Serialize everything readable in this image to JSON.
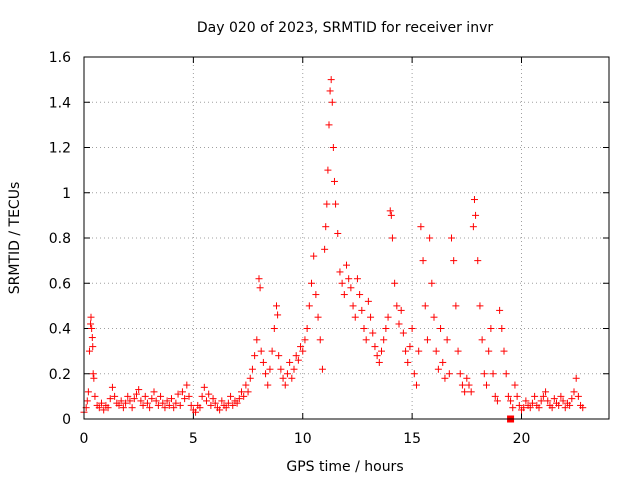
{
  "chart_data": {
    "type": "scatter",
    "title": "Day 020 of 2023, SRMTID for receiver invr",
    "xlabel": "GPS time / hours",
    "ylabel": "SRMTID / TECUs",
    "xlim": [
      0,
      24
    ],
    "ylim": [
      0,
      1.6
    ],
    "x_ticks": [
      0,
      5,
      10,
      15,
      20
    ],
    "x_tick_labels": [
      "0",
      "5",
      "10",
      "15",
      "20"
    ],
    "y_ticks": [
      0,
      0.2,
      0.4,
      0.6,
      0.8,
      1.0,
      1.2,
      1.4,
      1.6
    ],
    "y_tick_labels": [
      "0",
      "0.2",
      "0.4",
      "0.6",
      "0.8",
      "1",
      "1.2",
      "1.4",
      "1.6"
    ],
    "grid": true,
    "marker": "plus",
    "marker_color": "#ff0000",
    "series": [
      {
        "name": "SRMTID",
        "points": [
          [
            0.0,
            0.03
          ],
          [
            0.1,
            0.05
          ],
          [
            0.15,
            0.08
          ],
          [
            0.2,
            0.12
          ],
          [
            0.25,
            0.3
          ],
          [
            0.3,
            0.42
          ],
          [
            0.32,
            0.45
          ],
          [
            0.35,
            0.4
          ],
          [
            0.38,
            0.36
          ],
          [
            0.4,
            0.32
          ],
          [
            0.42,
            0.2
          ],
          [
            0.45,
            0.18
          ],
          [
            0.5,
            0.1
          ],
          [
            0.6,
            0.06
          ],
          [
            0.7,
            0.05
          ],
          [
            0.8,
            0.07
          ],
          [
            0.9,
            0.04
          ],
          [
            1.0,
            0.06
          ],
          [
            1.1,
            0.05
          ],
          [
            1.2,
            0.09
          ],
          [
            1.3,
            0.14
          ],
          [
            1.4,
            0.1
          ],
          [
            1.5,
            0.07
          ],
          [
            1.6,
            0.06
          ],
          [
            1.7,
            0.08
          ],
          [
            1.8,
            0.05
          ],
          [
            1.9,
            0.07
          ],
          [
            2.0,
            0.1
          ],
          [
            2.1,
            0.08
          ],
          [
            2.2,
            0.05
          ],
          [
            2.3,
            0.09
          ],
          [
            2.4,
            0.11
          ],
          [
            2.5,
            0.13
          ],
          [
            2.6,
            0.08
          ],
          [
            2.7,
            0.06
          ],
          [
            2.8,
            0.1
          ],
          [
            2.9,
            0.07
          ],
          [
            3.0,
            0.05
          ],
          [
            3.1,
            0.09
          ],
          [
            3.2,
            0.12
          ],
          [
            3.3,
            0.08
          ],
          [
            3.4,
            0.06
          ],
          [
            3.5,
            0.1
          ],
          [
            3.6,
            0.07
          ],
          [
            3.7,
            0.05
          ],
          [
            3.8,
            0.08
          ],
          [
            3.9,
            0.06
          ],
          [
            4.0,
            0.09
          ],
          [
            4.1,
            0.05
          ],
          [
            4.2,
            0.07
          ],
          [
            4.3,
            0.11
          ],
          [
            4.4,
            0.06
          ],
          [
            4.5,
            0.12
          ],
          [
            4.6,
            0.09
          ],
          [
            4.7,
            0.15
          ],
          [
            4.8,
            0.1
          ],
          [
            4.9,
            0.06
          ],
          [
            5.0,
            0.04
          ],
          [
            5.1,
            0.03
          ],
          [
            5.2,
            0.06
          ],
          [
            5.3,
            0.05
          ],
          [
            5.4,
            0.1
          ],
          [
            5.5,
            0.14
          ],
          [
            5.6,
            0.08
          ],
          [
            5.7,
            0.11
          ],
          [
            5.8,
            0.06
          ],
          [
            5.9,
            0.09
          ],
          [
            6.0,
            0.07
          ],
          [
            6.1,
            0.05
          ],
          [
            6.2,
            0.04
          ],
          [
            6.3,
            0.08
          ],
          [
            6.4,
            0.06
          ],
          [
            6.5,
            0.05
          ],
          [
            6.6,
            0.07
          ],
          [
            6.7,
            0.1
          ],
          [
            6.8,
            0.06
          ],
          [
            6.9,
            0.08
          ],
          [
            7.0,
            0.07
          ],
          [
            7.1,
            0.09
          ],
          [
            7.2,
            0.12
          ],
          [
            7.3,
            0.1
          ],
          [
            7.4,
            0.15
          ],
          [
            7.5,
            0.12
          ],
          [
            7.6,
            0.18
          ],
          [
            7.7,
            0.22
          ],
          [
            7.8,
            0.28
          ],
          [
            7.9,
            0.35
          ],
          [
            8.0,
            0.62
          ],
          [
            8.05,
            0.58
          ],
          [
            8.1,
            0.3
          ],
          [
            8.2,
            0.25
          ],
          [
            8.3,
            0.2
          ],
          [
            8.4,
            0.15
          ],
          [
            8.5,
            0.22
          ],
          [
            8.6,
            0.3
          ],
          [
            8.7,
            0.4
          ],
          [
            8.8,
            0.5
          ],
          [
            8.85,
            0.46
          ],
          [
            8.9,
            0.28
          ],
          [
            9.0,
            0.22
          ],
          [
            9.1,
            0.18
          ],
          [
            9.2,
            0.15
          ],
          [
            9.3,
            0.2
          ],
          [
            9.4,
            0.25
          ],
          [
            9.5,
            0.18
          ],
          [
            9.6,
            0.22
          ],
          [
            9.7,
            0.28
          ],
          [
            9.8,
            0.26
          ],
          [
            9.9,
            0.32
          ],
          [
            10.0,
            0.3
          ],
          [
            10.1,
            0.35
          ],
          [
            10.2,
            0.4
          ],
          [
            10.3,
            0.5
          ],
          [
            10.4,
            0.6
          ],
          [
            10.5,
            0.72
          ],
          [
            10.6,
            0.55
          ],
          [
            10.7,
            0.45
          ],
          [
            10.8,
            0.35
          ],
          [
            10.9,
            0.22
          ],
          [
            11.0,
            0.75
          ],
          [
            11.05,
            0.85
          ],
          [
            11.1,
            0.95
          ],
          [
            11.15,
            1.1
          ],
          [
            11.2,
            1.3
          ],
          [
            11.25,
            1.45
          ],
          [
            11.3,
            1.5
          ],
          [
            11.35,
            1.4
          ],
          [
            11.4,
            1.2
          ],
          [
            11.45,
            1.05
          ],
          [
            11.5,
            0.95
          ],
          [
            11.6,
            0.82
          ],
          [
            11.7,
            0.65
          ],
          [
            11.8,
            0.6
          ],
          [
            11.9,
            0.55
          ],
          [
            12.0,
            0.68
          ],
          [
            12.1,
            0.62
          ],
          [
            12.2,
            0.58
          ],
          [
            12.3,
            0.5
          ],
          [
            12.4,
            0.45
          ],
          [
            12.5,
            0.62
          ],
          [
            12.6,
            0.55
          ],
          [
            12.7,
            0.48
          ],
          [
            12.8,
            0.4
          ],
          [
            12.9,
            0.35
          ],
          [
            13.0,
            0.52
          ],
          [
            13.1,
            0.45
          ],
          [
            13.2,
            0.38
          ],
          [
            13.3,
            0.32
          ],
          [
            13.4,
            0.28
          ],
          [
            13.5,
            0.25
          ],
          [
            13.6,
            0.3
          ],
          [
            13.7,
            0.35
          ],
          [
            13.8,
            0.4
          ],
          [
            13.9,
            0.45
          ],
          [
            14.0,
            0.92
          ],
          [
            14.05,
            0.9
          ],
          [
            14.1,
            0.8
          ],
          [
            14.2,
            0.6
          ],
          [
            14.3,
            0.5
          ],
          [
            14.4,
            0.42
          ],
          [
            14.5,
            0.48
          ],
          [
            14.6,
            0.38
          ],
          [
            14.7,
            0.3
          ],
          [
            14.8,
            0.25
          ],
          [
            14.9,
            0.32
          ],
          [
            15.0,
            0.4
          ],
          [
            15.1,
            0.2
          ],
          [
            15.2,
            0.15
          ],
          [
            15.3,
            0.3
          ],
          [
            15.4,
            0.85
          ],
          [
            15.5,
            0.7
          ],
          [
            15.6,
            0.5
          ],
          [
            15.7,
            0.35
          ],
          [
            15.8,
            0.8
          ],
          [
            15.9,
            0.6
          ],
          [
            16.0,
            0.45
          ],
          [
            16.1,
            0.3
          ],
          [
            16.2,
            0.22
          ],
          [
            16.3,
            0.4
          ],
          [
            16.4,
            0.25
          ],
          [
            16.5,
            0.18
          ],
          [
            16.6,
            0.35
          ],
          [
            16.7,
            0.2
          ],
          [
            16.8,
            0.8
          ],
          [
            16.9,
            0.7
          ],
          [
            17.0,
            0.5
          ],
          [
            17.1,
            0.3
          ],
          [
            17.2,
            0.2
          ],
          [
            17.3,
            0.15
          ],
          [
            17.4,
            0.12
          ],
          [
            17.5,
            0.18
          ],
          [
            17.6,
            0.15
          ],
          [
            17.7,
            0.12
          ],
          [
            17.8,
            0.85
          ],
          [
            17.85,
            0.97
          ],
          [
            17.9,
            0.9
          ],
          [
            18.0,
            0.7
          ],
          [
            18.1,
            0.5
          ],
          [
            18.2,
            0.35
          ],
          [
            18.3,
            0.2
          ],
          [
            18.4,
            0.15
          ],
          [
            18.5,
            0.3
          ],
          [
            18.6,
            0.4
          ],
          [
            18.7,
            0.2
          ],
          [
            18.8,
            0.1
          ],
          [
            18.9,
            0.08
          ],
          [
            19.0,
            0.48
          ],
          [
            19.1,
            0.4
          ],
          [
            19.2,
            0.3
          ],
          [
            19.3,
            0.2
          ],
          [
            19.4,
            0.1
          ],
          [
            19.5,
            0.08
          ],
          [
            19.6,
            0.05
          ],
          [
            19.7,
            0.15
          ],
          [
            19.8,
            0.1
          ],
          [
            19.9,
            0.06
          ],
          [
            20.0,
            0.04
          ],
          [
            20.1,
            0.05
          ],
          [
            20.2,
            0.08
          ],
          [
            20.3,
            0.06
          ],
          [
            20.4,
            0.05
          ],
          [
            20.5,
            0.07
          ],
          [
            20.6,
            0.1
          ],
          [
            20.7,
            0.06
          ],
          [
            20.8,
            0.05
          ],
          [
            20.9,
            0.08
          ],
          [
            21.0,
            0.1
          ],
          [
            21.1,
            0.12
          ],
          [
            21.2,
            0.08
          ],
          [
            21.3,
            0.06
          ],
          [
            21.4,
            0.05
          ],
          [
            21.5,
            0.09
          ],
          [
            21.6,
            0.07
          ],
          [
            21.7,
            0.06
          ],
          [
            21.8,
            0.1
          ],
          [
            21.9,
            0.08
          ],
          [
            22.0,
            0.05
          ],
          [
            22.1,
            0.07
          ],
          [
            22.2,
            0.06
          ],
          [
            22.3,
            0.09
          ],
          [
            22.4,
            0.12
          ],
          [
            22.5,
            0.18
          ],
          [
            22.6,
            0.1
          ],
          [
            22.7,
            0.06
          ],
          [
            22.8,
            0.05
          ]
        ]
      }
    ],
    "annotations": [
      {
        "type": "square-marker",
        "x": 19.5,
        "y": 0.0,
        "color": "#ff0000"
      }
    ]
  }
}
